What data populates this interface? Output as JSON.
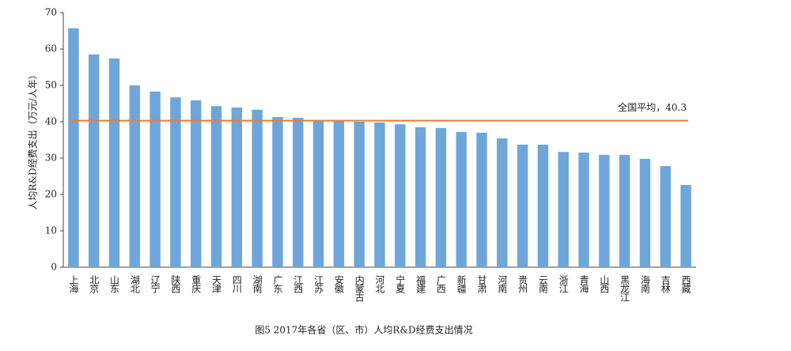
{
  "chart_data": {
    "type": "bar",
    "title": "图5   2017年各省（区、市）人均R&D经费支出情况",
    "y_label": "人均R&D经费支出（万元/人年）",
    "categories": [
      "上海",
      "北京",
      "山东",
      "湖北",
      "辽宁",
      "陕西",
      "重庆",
      "天津",
      "四川",
      "湖南",
      "广东",
      "江西",
      "江苏",
      "安徽",
      "内蒙古",
      "河北",
      "宁夏",
      "福建",
      "广西",
      "新疆",
      "甘肃",
      "河南",
      "贵州",
      "云南",
      "浙江",
      "青海",
      "山西",
      "黑龙江",
      "海南",
      "吉林",
      "西藏"
    ],
    "values": [
      65.7,
      58.5,
      57.4,
      50.0,
      48.3,
      46.7,
      45.9,
      44.3,
      43.9,
      43.3,
      41.3,
      41.1,
      40.2,
      40.2,
      40.0,
      39.8,
      39.3,
      38.5,
      38.3,
      37.2,
      37.0,
      35.4,
      33.7,
      33.7,
      31.7,
      31.5,
      30.9,
      30.9,
      29.8,
      27.8,
      22.6
    ],
    "color": "#6ea6da",
    "ylim": [
      0,
      70
    ],
    "yticks": [
      0,
      10,
      20,
      30,
      40,
      50,
      60,
      70
    ],
    "average_line": {
      "value": 40.3,
      "label": "全国平均，40.3",
      "color": "#ed7d31"
    }
  }
}
